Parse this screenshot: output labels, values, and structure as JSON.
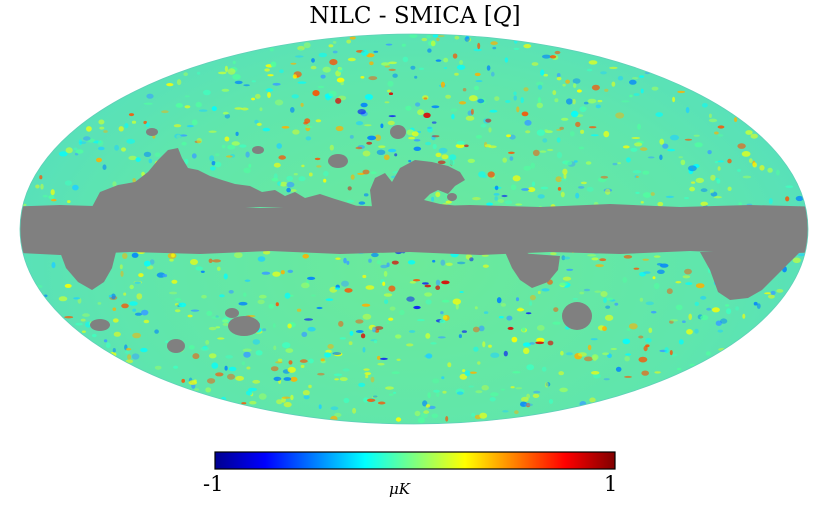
{
  "title": {
    "prefix": "NILC - SMICA [",
    "stokes": "Q",
    "suffix": "]"
  },
  "map": {
    "projection": "mollweide",
    "coordinate_system": "galactic",
    "mask_color": "#808080",
    "field_level": "near zero"
  },
  "colorbar": {
    "min_label": "-1",
    "max_label": "1",
    "unit_label": "μK",
    "colormap": "jet",
    "stops": [
      "#00008f",
      "#0000ff",
      "#00ffff",
      "#7fff7f",
      "#ffff00",
      "#ff0000",
      "#800000"
    ]
  },
  "colors": {
    "field_base": "#5fe8a8",
    "mask": "#808080"
  }
}
